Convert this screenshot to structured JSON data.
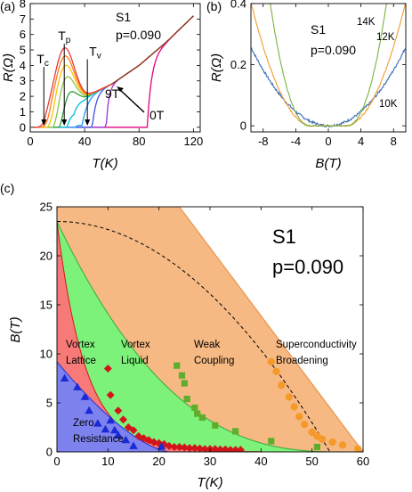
{
  "chart_data": [
    {
      "panel": "(a)",
      "type": "line",
      "sample": "S1",
      "doping": "p=0.090",
      "xlabel": "T(K)",
      "ylabel": "R(Ω)",
      "xlim": [
        0,
        125
      ],
      "ylim": [
        -0.3,
        8
      ],
      "xticks": [
        "0",
        "40",
        "80",
        "120"
      ],
      "yticks": [
        "0",
        "1",
        "2",
        "3",
        "4",
        "5",
        "6",
        "7",
        "8"
      ],
      "field_range": {
        "low": "0T",
        "high": "9T"
      },
      "markers": [
        {
          "label": "T_c",
          "sub": "c",
          "x": 10
        },
        {
          "label": "T_p",
          "sub": "p",
          "x": 25
        },
        {
          "label": "T_v",
          "sub": "v",
          "x": 42
        }
      ],
      "series_by_field_T": [
        0,
        1,
        2,
        3,
        4,
        5,
        6,
        7,
        8,
        9
      ],
      "normal_state_x": [
        40,
        60,
        80,
        100,
        120
      ],
      "normal_state_y": [
        2.0,
        2.8,
        4.0,
        5.5,
        7.2
      ],
      "colors": [
        "#e6007e",
        "#9b2fd1",
        "#3f51e0",
        "#2196f3",
        "#00bcd4",
        "#2e9d3a",
        "#8bc34a",
        "#ffc107",
        "#ff7a1a",
        "#e53935"
      ]
    },
    {
      "panel": "(b)",
      "type": "line",
      "sample": "S1",
      "doping": "p=0.090",
      "xlabel": "B(T)",
      "ylabel": "R(Ω)",
      "xlim": [
        -9.5,
        9.5
      ],
      "ylim": [
        -0.02,
        0.4
      ],
      "xticks": [
        "-8",
        "-4",
        "0",
        "4",
        "8"
      ],
      "yticks": [
        "0",
        "0.2",
        "0.4"
      ],
      "series": [
        {
          "name": "10K",
          "color": "#3b6bb5",
          "onset": 0.0,
          "coef": 0.0028,
          "power": 2
        },
        {
          "name": "12K",
          "color": "#f39a2b",
          "onset": 2.0,
          "coef": 0.0072,
          "power": 2
        },
        {
          "name": "14K",
          "color": "#7bb241",
          "onset": 2.2,
          "coef": 0.012,
          "power": 2.2
        }
      ]
    },
    {
      "panel": "(c)",
      "type": "scatter",
      "sample": "S1",
      "doping": "p=0.090",
      "xlabel": "T(K)",
      "ylabel": "B(T)",
      "xlim": [
        0,
        60
      ],
      "ylim": [
        0,
        25
      ],
      "xticks": [
        "0",
        "10",
        "20",
        "30",
        "40",
        "50",
        "60"
      ],
      "yticks": [
        "0",
        "5",
        "10",
        "15",
        "20",
        "25"
      ],
      "regions": [
        {
          "name": "Zero Resistance",
          "line1": "Zero",
          "line2": "Resistance",
          "color": "#7e82ee"
        },
        {
          "name": "Vortex Lattice",
          "line1": "Vortex",
          "line2": "Lattice",
          "color": "#f77a78"
        },
        {
          "name": "Vortex Liquid",
          "line1": "Vortex",
          "line2": "Liquid",
          "color": "#7df27a"
        },
        {
          "name": "Weak Coupling",
          "line1": "Weak",
          "line2": "Coupling",
          "color": "#f6b983"
        },
        {
          "name": "Superconductivity Broadening",
          "line1": "Superconductivity",
          "line2": "Broadening",
          "color": "#ffffff"
        }
      ],
      "blue_triangles": [
        [
          1.5,
          7.5
        ],
        [
          4,
          6.6
        ],
        [
          5.5,
          5.6
        ],
        [
          6.3,
          4.2
        ],
        [
          8,
          2.9
        ],
        [
          9.5,
          2.3
        ],
        [
          10.5,
          3.2
        ],
        [
          11.3,
          2.2
        ],
        [
          12,
          1.7
        ],
        [
          13.5,
          1.2
        ],
        [
          15,
          0.6
        ],
        [
          20.5,
          0.55
        ]
      ],
      "red_diamonds": [
        [
          10,
          8.5
        ],
        [
          10.5,
          5.8
        ],
        [
          12,
          4.2
        ],
        [
          13,
          3.3
        ],
        [
          14,
          2.5
        ],
        [
          15,
          2.2
        ],
        [
          16,
          1.6
        ],
        [
          17,
          1.4
        ],
        [
          18,
          1.2
        ],
        [
          19,
          1.0
        ],
        [
          20,
          0.9
        ],
        [
          21,
          0.8
        ],
        [
          22,
          0.6
        ],
        [
          23,
          0.5
        ],
        [
          24,
          0.5
        ],
        [
          25,
          0.45
        ],
        [
          26,
          0.4
        ],
        [
          27,
          0.4
        ],
        [
          28,
          0.35
        ],
        [
          29,
          0.3
        ],
        [
          30,
          0.3
        ],
        [
          31,
          0.3
        ],
        [
          32,
          0.25
        ],
        [
          33,
          0.25
        ],
        [
          34,
          0.2
        ],
        [
          35,
          0.2
        ],
        [
          36,
          0.2
        ]
      ],
      "green_squares": [
        [
          23.5,
          8.8
        ],
        [
          24.5,
          7.8
        ],
        [
          25,
          7.0
        ],
        [
          25.5,
          5.4
        ],
        [
          27,
          4.5
        ],
        [
          27.5,
          3.9
        ],
        [
          28.5,
          3.5
        ],
        [
          31,
          2.7
        ],
        [
          35,
          2.1
        ],
        [
          42,
          1.1
        ],
        [
          51,
          0.5
        ]
      ],
      "orange_circles": [
        [
          42,
          9.2
        ],
        [
          43,
          8.2
        ],
        [
          44,
          6.8
        ],
        [
          45.5,
          5.6
        ],
        [
          46.5,
          4.6
        ],
        [
          47.5,
          3.6
        ],
        [
          48.5,
          2.8
        ],
        [
          50,
          2.0
        ],
        [
          51,
          1.6
        ],
        [
          52,
          1.3
        ],
        [
          54,
          1.0
        ],
        [
          56,
          0.7
        ],
        [
          59,
          0.3
        ]
      ],
      "hc2_dashed": {
        "B0": 23.5,
        "Tc": 53.5
      }
    }
  ],
  "labels": {
    "panel_a": "(a)",
    "panel_b": "(b)",
    "panel_c": "(c)",
    "T_letter": "T",
    "field_low": "0T",
    "field_high": "9T"
  }
}
